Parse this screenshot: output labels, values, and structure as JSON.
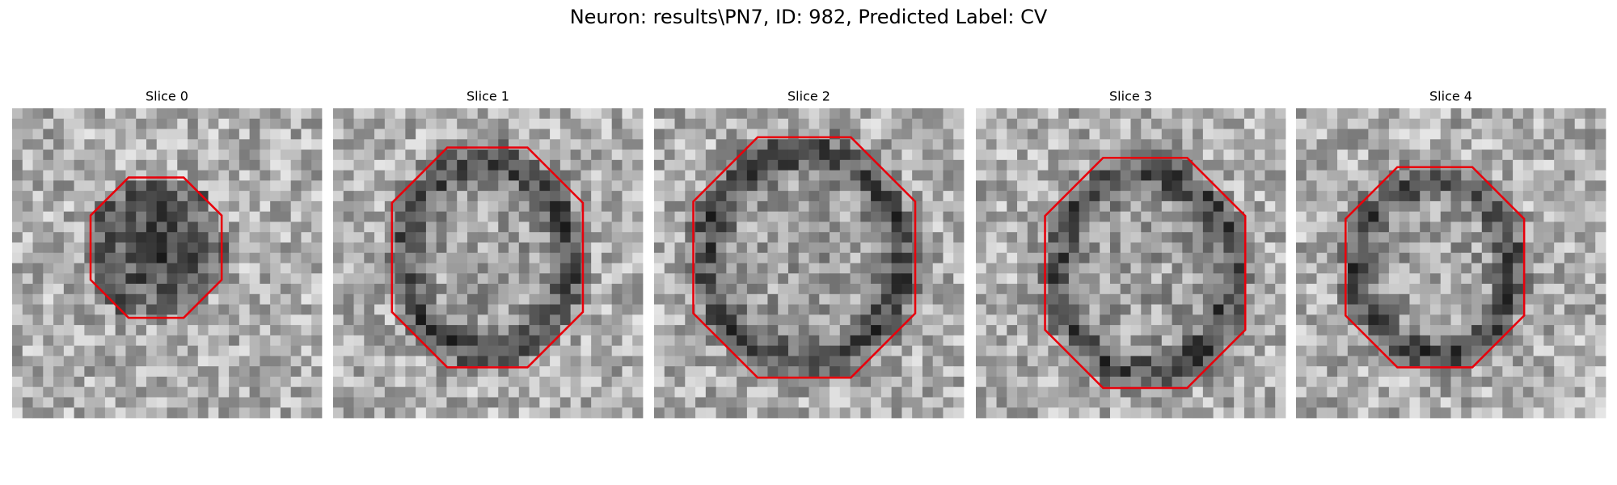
{
  "title": "Neuron: results\\PN7, ID: 982, Predicted Label: CV",
  "panels": [
    {
      "title": "Slice 0"
    },
    {
      "title": "Slice 1"
    },
    {
      "title": "Slice 2"
    },
    {
      "title": "Slice 3"
    },
    {
      "title": "Slice 4"
    }
  ]
}
